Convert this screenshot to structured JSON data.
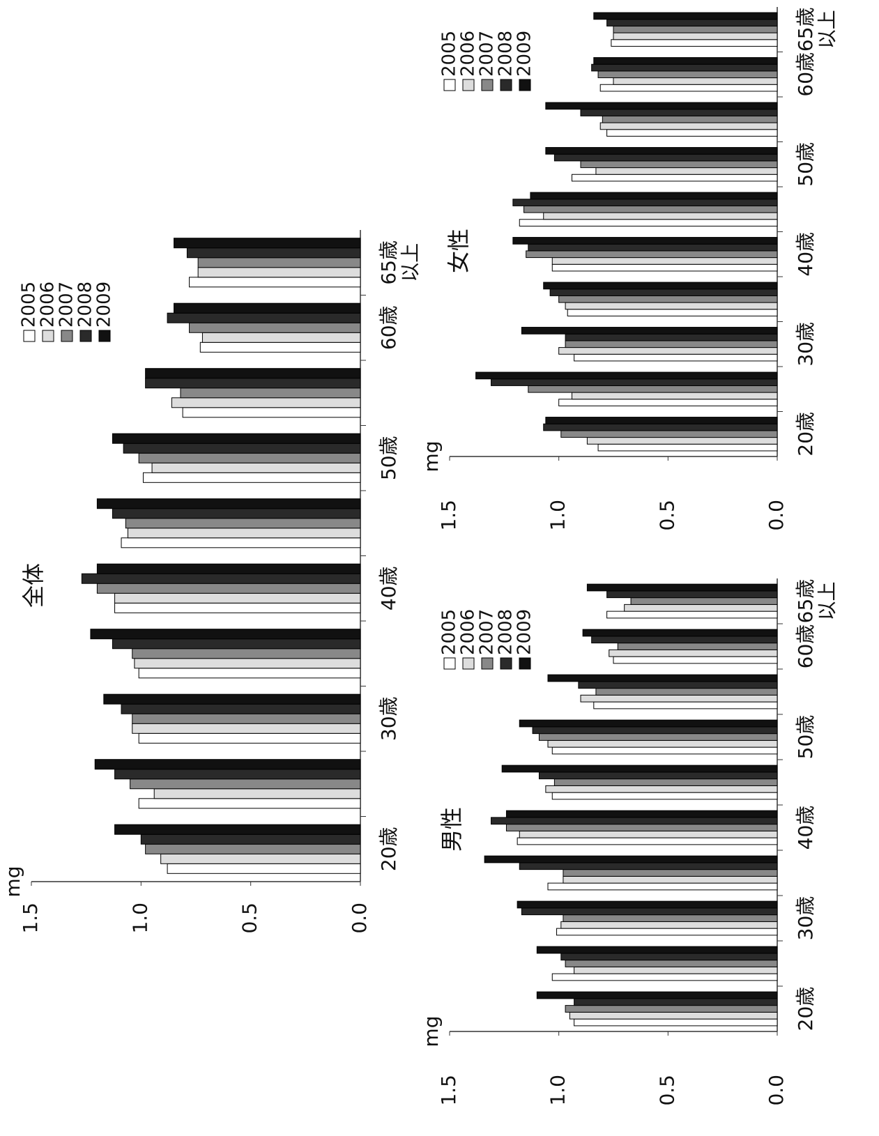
{
  "chart_data": [
    {
      "type": "bar",
      "title": "全体",
      "y_label": "mg",
      "categories": [
        "20歳",
        null,
        "30歳",
        null,
        "40歳",
        null,
        "50歳",
        null,
        "60歳",
        "65歳\n以上"
      ],
      "series": [
        {
          "name": "2005",
          "color": "#ffffff",
          "values": [
            0.88,
            1.01,
            1.01,
            1.01,
            1.12,
            1.09,
            0.99,
            0.81,
            0.73,
            0.78
          ]
        },
        {
          "name": "2006",
          "color": "#dddddd",
          "values": [
            0.91,
            0.94,
            1.04,
            1.03,
            1.12,
            1.06,
            0.95,
            0.86,
            0.72,
            0.74
          ]
        },
        {
          "name": "2007",
          "color": "#888888",
          "values": [
            0.98,
            1.05,
            1.04,
            1.04,
            1.2,
            1.07,
            1.01,
            0.82,
            0.78,
            0.74
          ]
        },
        {
          "name": "2008",
          "color": "#2a2a2a",
          "values": [
            1.0,
            1.12,
            1.09,
            1.13,
            1.27,
            1.13,
            1.08,
            0.98,
            0.88,
            0.79
          ]
        },
        {
          "name": "2009",
          "color": "#111111",
          "values": [
            1.12,
            1.21,
            1.17,
            1.23,
            1.2,
            1.2,
            1.13,
            0.98,
            0.85,
            0.85
          ]
        }
      ],
      "ylim": [
        0,
        1.5
      ],
      "yticks": [
        {
          "value": 0,
          "label": "0.0"
        },
        0.5,
        {
          "value": 1,
          "label": "1.0"
        },
        1.5
      ]
    },
    {
      "type": "bar",
      "title": "男性",
      "y_label": "mg",
      "categories": [
        "20歳",
        null,
        "30歳",
        null,
        "40歳",
        null,
        "50歳",
        null,
        "60歳",
        "65歳\n以上"
      ],
      "series": [
        {
          "name": "2005",
          "color": "#ffffff",
          "values": [
            0.93,
            1.03,
            1.01,
            1.05,
            1.19,
            1.03,
            1.03,
            0.84,
            0.75,
            0.78
          ]
        },
        {
          "name": "2006",
          "color": "#dddddd",
          "values": [
            0.95,
            0.93,
            0.99,
            0.98,
            1.18,
            1.06,
            1.05,
            0.9,
            0.77,
            0.7
          ]
        },
        {
          "name": "2007",
          "color": "#888888",
          "values": [
            0.97,
            0.97,
            0.98,
            0.98,
            1.24,
            1.02,
            1.09,
            0.83,
            0.73,
            0.67
          ]
        },
        {
          "name": "2008",
          "color": "#2a2a2a",
          "values": [
            0.93,
            0.99,
            1.17,
            1.18,
            1.31,
            1.09,
            1.12,
            0.91,
            0.85,
            0.78
          ]
        },
        {
          "name": "2009",
          "color": "#111111",
          "values": [
            1.1,
            1.1,
            1.19,
            1.34,
            1.24,
            1.26,
            1.18,
            1.05,
            0.89,
            0.87
          ]
        }
      ],
      "ylim": [
        0,
        1.5
      ],
      "yticks": [
        {
          "value": 0,
          "label": "0.0"
        },
        0.5,
        {
          "value": 1,
          "label": "1.0"
        },
        1.5
      ]
    },
    {
      "type": "bar",
      "title": "女性",
      "y_label": "mg",
      "categories": [
        "20歳",
        null,
        "30歳",
        null,
        "40歳",
        null,
        "50歳",
        null,
        "60歳",
        "65歳\n以上"
      ],
      "series": [
        {
          "name": "2005",
          "color": "#ffffff",
          "values": [
            0.82,
            1.0,
            0.93,
            0.96,
            1.03,
            1.18,
            0.94,
            0.78,
            0.81,
            0.76
          ]
        },
        {
          "name": "2006",
          "color": "#dddddd",
          "values": [
            0.87,
            0.94,
            1.0,
            0.97,
            1.03,
            1.07,
            0.83,
            0.81,
            0.75,
            0.75
          ]
        },
        {
          "name": "2007",
          "color": "#888888",
          "values": [
            0.99,
            1.14,
            0.97,
            1.0,
            1.15,
            1.16,
            0.9,
            0.8,
            0.82,
            0.75
          ]
        },
        {
          "name": "2008",
          "color": "#2a2a2a",
          "values": [
            1.07,
            1.31,
            0.97,
            1.04,
            1.14,
            1.21,
            1.02,
            0.9,
            0.85,
            0.78
          ]
        },
        {
          "name": "2009",
          "color": "#111111",
          "values": [
            1.06,
            1.38,
            1.17,
            1.07,
            1.21,
            1.13,
            1.06,
            1.06,
            0.84,
            0.84
          ]
        }
      ],
      "ylim": [
        0,
        1.5
      ],
      "yticks": [
        {
          "value": 0,
          "label": "0.0"
        },
        0.5,
        {
          "value": 1,
          "label": "1.0"
        },
        1.5
      ]
    }
  ]
}
